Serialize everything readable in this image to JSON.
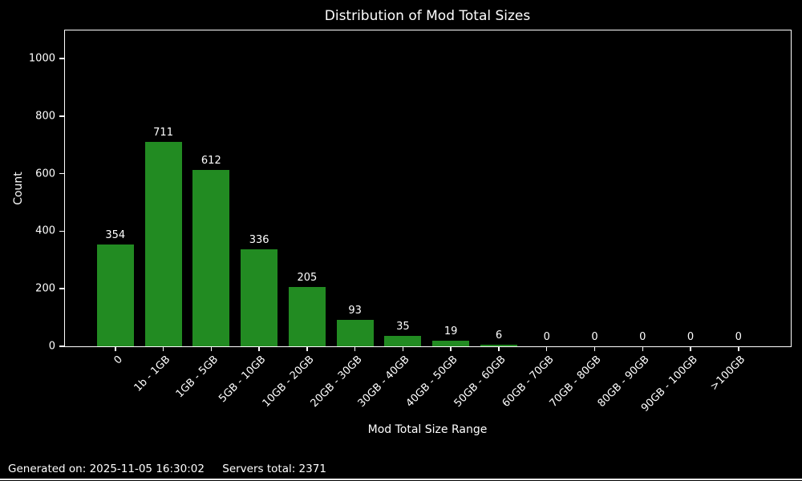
{
  "chart_data": {
    "type": "bar",
    "title": "Distribution of Mod Total Sizes",
    "xlabel": "Mod Total Size Range",
    "ylabel": "Count",
    "categories": [
      "0",
      "1b - 1GB",
      "1GB - 5GB",
      "5GB - 10GB",
      "10GB - 20GB",
      "20GB - 30GB",
      "30GB - 40GB",
      "40GB - 50GB",
      "50GB - 60GB",
      "60GB - 70GB",
      "70GB - 80GB",
      "80GB - 90GB",
      "90GB - 100GB",
      ">100GB"
    ],
    "values": [
      354,
      711,
      612,
      336,
      205,
      93,
      35,
      19,
      6,
      0,
      0,
      0,
      0,
      0
    ],
    "yticks": [
      0,
      200,
      400,
      600,
      800,
      1000
    ],
    "ylim": [
      0,
      1095
    ],
    "xtick_rotation": 45,
    "bar_labels": true,
    "grid": false,
    "legend_position": "none",
    "bar_color": "#228B22",
    "background_color": "#000000",
    "text_color": "#ffffff"
  },
  "footer": {
    "generated": "Generated on: 2025-11-05 16:30:02",
    "servers_total": "Servers total: 2371"
  }
}
